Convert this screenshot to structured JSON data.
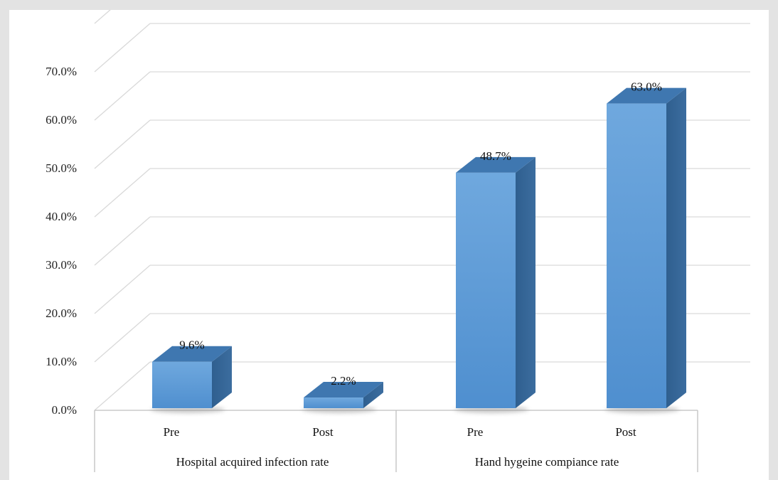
{
  "chart_data": {
    "type": "bar",
    "title": "",
    "xlabel": "",
    "ylabel": "",
    "ylim": [
      0,
      0.7
    ],
    "y_ticks": [
      "0.0%",
      "10.0%",
      "20.0%",
      "30.0%",
      "40.0%",
      "50.0%",
      "60.0%",
      "70.0%"
    ],
    "style": "3d-column",
    "grid": true,
    "legend": "none",
    "groups": [
      {
        "label": "Hospital acquired infection rate",
        "bars": [
          {
            "label": "Pre",
            "value": 0.096,
            "data_label": "9.6%"
          },
          {
            "label": "Post",
            "value": 0.022,
            "data_label": "2.2%"
          }
        ]
      },
      {
        "label": "Hand hygeine compiance rate",
        "bars": [
          {
            "label": "Pre",
            "value": 0.487,
            "data_label": "48.7%"
          },
          {
            "label": "Post",
            "value": 0.63,
            "data_label": "63.0%"
          }
        ]
      }
    ],
    "colors": {
      "bar_front": "#5b9bd5",
      "bar_front_light": "#6aa5dc",
      "bar_side": "#2e5f8f",
      "bar_top": "#3f77b0",
      "grid": "#d9d9d9",
      "floor_shadow": "#8c8c8c"
    }
  }
}
